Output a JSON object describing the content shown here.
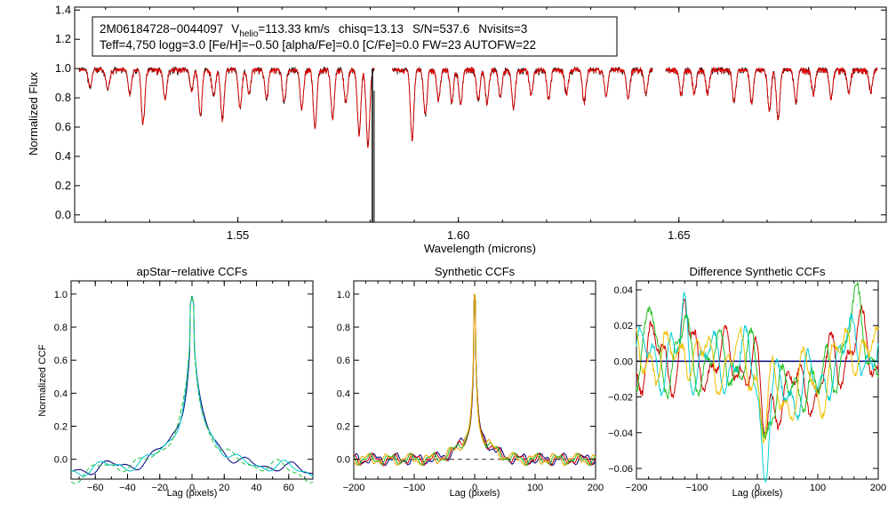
{
  "chart_data": [
    {
      "type": "line",
      "name": "spectrum",
      "annotation": {
        "star": "2M06184728−0044097",
        "vhelio_prefix": "V",
        "vhelio_sub": "helio",
        "vhelio_value": "=113.33 km/s",
        "chisq": "chisq=13.13",
        "sn": "S/N=537.6",
        "nvisits": "Nvisits=3",
        "line2": "Teff=4,750 logg=3.0 [Fe/H]=−0.50 [alpha/Fe]=0.0 [C/Fe]=0.0 FW=23 AUTOFW=22"
      },
      "xlabel": "Wavelength (microns)",
      "ylabel": "Normalized Flux",
      "xlim": [
        1.513,
        1.697
      ],
      "ylim": [
        -0.05,
        1.42
      ],
      "xticks": [
        1.55,
        1.6,
        1.65
      ],
      "xtick_labels": [
        "1.55",
        "1.60",
        "1.65"
      ],
      "yticks": [
        0.0,
        0.2,
        0.4,
        0.6,
        0.8,
        1.0,
        1.2,
        1.4
      ],
      "ytick_labels": [
        "0.0",
        "0.2",
        "0.4",
        "0.6",
        "0.8",
        "1.0",
        "1.2",
        "1.4"
      ],
      "chips": [
        [
          1.514,
          1.581
        ],
        [
          1.585,
          1.644
        ],
        [
          1.647,
          1.695
        ]
      ],
      "series": [
        {
          "name": "observed",
          "color": "#000000"
        },
        {
          "name": "model",
          "color": "#e00000"
        }
      ],
      "features": [
        [
          1.5165,
          0.88
        ],
        [
          1.5205,
          0.86
        ],
        [
          1.5255,
          0.83
        ],
        [
          1.5285,
          0.64
        ],
        [
          1.5335,
          0.8
        ],
        [
          1.5395,
          0.86
        ],
        [
          1.5415,
          0.69
        ],
        [
          1.5445,
          0.82
        ],
        [
          1.5465,
          0.66
        ],
        [
          1.5505,
          0.74
        ],
        [
          1.5525,
          0.84
        ],
        [
          1.5565,
          0.8
        ],
        [
          1.5605,
          0.78
        ],
        [
          1.5645,
          0.73
        ],
        [
          1.5675,
          0.6
        ],
        [
          1.5715,
          0.67
        ],
        [
          1.5745,
          0.78
        ],
        [
          1.5775,
          0.56
        ],
        [
          1.5795,
          0.48
        ],
        [
          1.5895,
          0.53
        ],
        [
          1.5925,
          0.7
        ],
        [
          1.5955,
          0.8
        ],
        [
          1.5985,
          0.78
        ],
        [
          1.6005,
          0.76
        ],
        [
          1.6045,
          0.79
        ],
        [
          1.6065,
          0.77
        ],
        [
          1.6095,
          0.81
        ],
        [
          1.6125,
          0.74
        ],
        [
          1.6165,
          0.83
        ],
        [
          1.6205,
          0.8
        ],
        [
          1.6245,
          0.84
        ],
        [
          1.6285,
          0.78
        ],
        [
          1.6335,
          0.82
        ],
        [
          1.6385,
          0.8
        ],
        [
          1.6425,
          0.83
        ],
        [
          1.6505,
          0.83
        ],
        [
          1.6535,
          0.84
        ],
        [
          1.6565,
          0.84
        ],
        [
          1.6625,
          0.78
        ],
        [
          1.6665,
          0.77
        ],
        [
          1.6705,
          0.72
        ],
        [
          1.6725,
          0.66
        ],
        [
          1.6765,
          0.78
        ],
        [
          1.6805,
          0.84
        ],
        [
          1.6845,
          0.8
        ],
        [
          1.6885,
          0.84
        ],
        [
          1.6935,
          0.86
        ]
      ],
      "bad_pixel": {
        "x": 1.5805,
        "y": -0.05
      }
    },
    {
      "type": "line",
      "name": "apstar-ccf",
      "title": "apStar−relative CCFs",
      "xlabel": "Lag (pixels)",
      "ylabel": "Normalized CCF",
      "xlim": [
        -75,
        75
      ],
      "ylim": [
        -0.12,
        1.08
      ],
      "xticks": [
        -60,
        -40,
        -20,
        0,
        20,
        40,
        60
      ],
      "xtick_labels": [
        "−60",
        "−40",
        "−20",
        "0",
        "20",
        "40",
        "60"
      ],
      "yticks": [
        0.0,
        0.2,
        0.4,
        0.6,
        0.8,
        1.0
      ],
      "ytick_labels": [
        "0.0",
        "0.2",
        "0.4",
        "0.6",
        "0.8",
        "1.0"
      ],
      "series": [
        {
          "name": "combined",
          "color": "#000080",
          "dash": false
        },
        {
          "name": "visit1",
          "color": "#00c8c8",
          "dash": false
        },
        {
          "name": "visit2",
          "color": "#20c040",
          "dash": true
        }
      ]
    },
    {
      "type": "line",
      "name": "synthetic-ccf",
      "title": "Synthetic CCFs",
      "xlabel": "Lag (pixels)",
      "xlim": [
        -200,
        200
      ],
      "ylim": [
        -0.12,
        1.08
      ],
      "xticks": [
        -200,
        -100,
        0,
        100,
        200
      ],
      "xtick_labels": [
        "−200",
        "−100",
        "0",
        "100",
        "200"
      ],
      "yticks": [
        0.0,
        0.2,
        0.4,
        0.6,
        0.8,
        1.0
      ],
      "ytick_labels": [
        "0.0",
        "0.2",
        "0.4",
        "0.6",
        "0.8",
        "1.0"
      ],
      "zero_line": 0.0,
      "series": [
        {
          "name": "combined",
          "color": "#000080"
        },
        {
          "name": "visit1",
          "color": "#d00000"
        },
        {
          "name": "visit2",
          "color": "#20c020"
        },
        {
          "name": "visit3",
          "color": "#f0a000"
        }
      ]
    },
    {
      "type": "line",
      "name": "difference-ccf",
      "title": "Difference Synthetic CCFs",
      "xlabel": "Lag (pixels)",
      "xlim": [
        -200,
        200
      ],
      "ylim": [
        -0.066,
        0.045
      ],
      "xticks": [
        -200,
        -100,
        0,
        100,
        200
      ],
      "xtick_labels": [
        "−200",
        "−100",
        "0",
        "100",
        "200"
      ],
      "yticks": [
        -0.06,
        -0.04,
        -0.02,
        0.0,
        0.02,
        0.04
      ],
      "ytick_labels": [
        "−0.06",
        "−0.04",
        "−0.02",
        "0.00",
        "0.02",
        "0.04"
      ],
      "zero_line": 0.0,
      "series": [
        {
          "name": "zero",
          "color": "#000080"
        },
        {
          "name": "diff1",
          "color": "#d00000"
        },
        {
          "name": "diff2",
          "color": "#20c020"
        },
        {
          "name": "diff3",
          "color": "#00d0d0"
        },
        {
          "name": "diff4",
          "color": "#f0c000"
        }
      ]
    }
  ]
}
